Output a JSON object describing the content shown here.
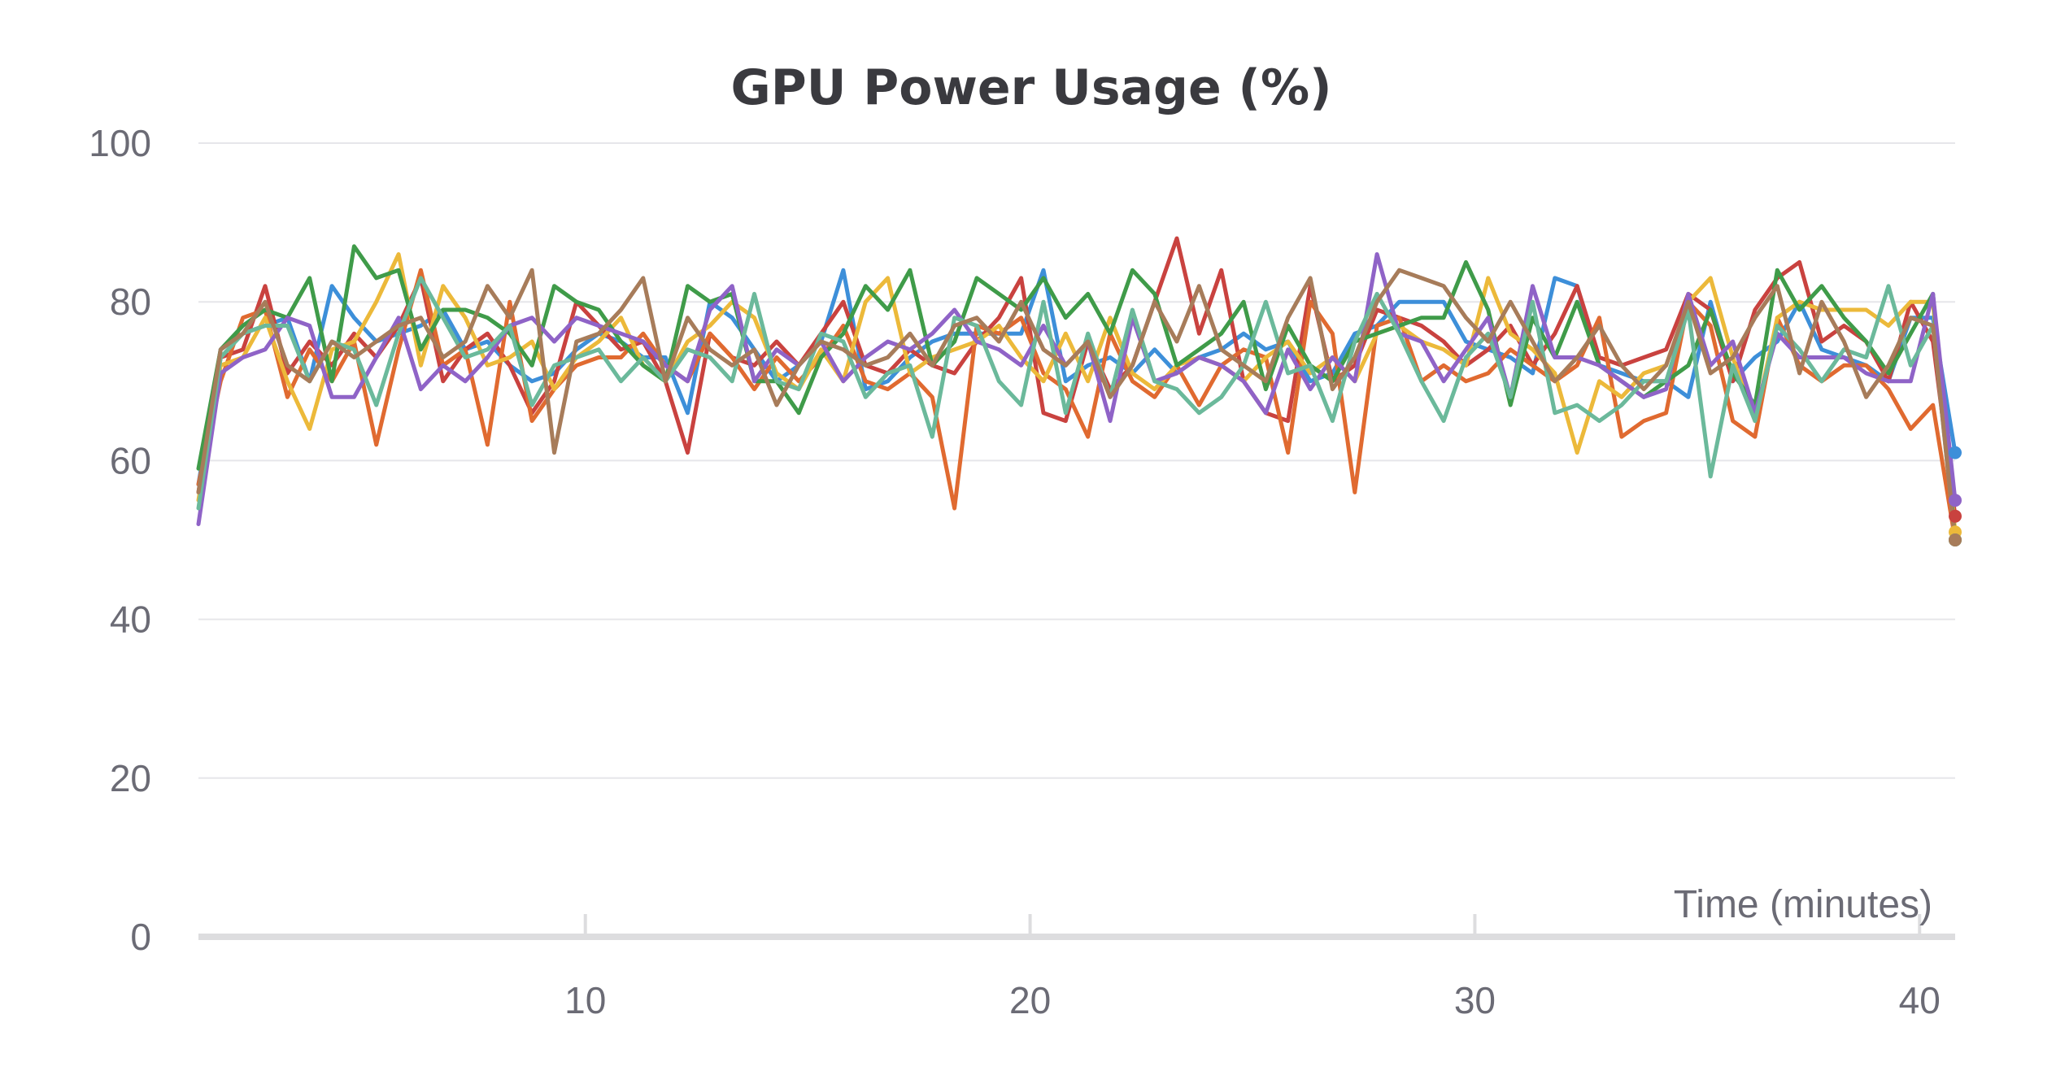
{
  "chart_data": {
    "type": "line",
    "title": "GPU Power Usage (%)",
    "xlabel": "Time (minutes)",
    "ylabel": "",
    "xlim": [
      1.3,
      40.8
    ],
    "ylim": [
      0,
      100
    ],
    "xticks": [
      10,
      20,
      30,
      40
    ],
    "yticks": [
      0,
      20,
      40,
      60,
      80,
      100
    ],
    "grid": true,
    "x": [
      1.3,
      1.8,
      2.3,
      2.8,
      3.3,
      3.8,
      4.3,
      4.8,
      5.3,
      5.8,
      6.3,
      6.8,
      7.3,
      7.8,
      8.3,
      8.8,
      9.3,
      9.8,
      10.3,
      10.8,
      11.3,
      11.8,
      12.3,
      12.8,
      13.3,
      13.8,
      14.3,
      14.8,
      15.3,
      15.8,
      16.3,
      16.8,
      17.3,
      17.8,
      18.3,
      18.8,
      19.3,
      19.8,
      20.3,
      20.8,
      21.3,
      21.8,
      22.3,
      22.8,
      23.3,
      23.8,
      24.3,
      24.8,
      25.3,
      25.8,
      26.3,
      26.8,
      27.3,
      27.8,
      28.3,
      28.8,
      29.3,
      29.8,
      30.3,
      30.8,
      31.3,
      31.8,
      32.3,
      32.8,
      33.3,
      33.8,
      34.3,
      34.8,
      35.3,
      35.8,
      36.3,
      36.8,
      37.3,
      37.8,
      38.3,
      38.8,
      39.3,
      39.8,
      40.3,
      40.8
    ],
    "series": [
      {
        "color": "#3d8fd9",
        "values": [
          57,
          74,
          76,
          77,
          78,
          70,
          82,
          78,
          75,
          76,
          77,
          79,
          74,
          75,
          72,
          70,
          71,
          74,
          76,
          75,
          73,
          73,
          66,
          80,
          78,
          74,
          70,
          72,
          75,
          84,
          69,
          70,
          73,
          75,
          76,
          76,
          76,
          76,
          84,
          70,
          72,
          73,
          71,
          74,
          71,
          73,
          74,
          76,
          74,
          75,
          70,
          71,
          76,
          77,
          80,
          80,
          80,
          75,
          74,
          73,
          71,
          83,
          82,
          72,
          71,
          70,
          70,
          68,
          80,
          70,
          73,
          75,
          80,
          74,
          73,
          72,
          70,
          78,
          78,
          61
        ]
      },
      {
        "color": "#c9423f",
        "values": [
          56,
          73,
          74,
          82,
          71,
          75,
          72,
          76,
          73,
          77,
          83,
          70,
          74,
          76,
          72,
          66,
          70,
          80,
          77,
          74,
          75,
          70,
          61,
          76,
          73,
          72,
          75,
          72,
          76,
          80,
          72,
          71,
          74,
          72,
          71,
          75,
          78,
          83,
          66,
          65,
          75,
          69,
          72,
          80,
          88,
          76,
          84,
          70,
          66,
          65,
          82,
          70,
          72,
          79,
          78,
          77,
          75,
          72,
          74,
          77,
          72,
          76,
          82,
          73,
          72,
          73,
          74,
          81,
          79,
          70,
          79,
          83,
          85,
          75,
          77,
          75,
          70,
          80,
          75,
          53
        ]
      },
      {
        "color": "#e06a30",
        "values": [
          57,
          70,
          78,
          79,
          68,
          74,
          70,
          75,
          62,
          74,
          84,
          72,
          74,
          62,
          80,
          65,
          69,
          72,
          73,
          73,
          76,
          72,
          70,
          76,
          73,
          69,
          73,
          70,
          73,
          77,
          70,
          69,
          71,
          68,
          54,
          77,
          76,
          78,
          71,
          69,
          63,
          76,
          70,
          68,
          72,
          67,
          72,
          74,
          73,
          61,
          80,
          76,
          56,
          77,
          78,
          70,
          72,
          70,
          71,
          74,
          72,
          70,
          72,
          78,
          63,
          65,
          66,
          80,
          77,
          65,
          63,
          78,
          72,
          70,
          72,
          72,
          69,
          64,
          67,
          50
        ]
      },
      {
        "color": "#ecb93a",
        "values": [
          55,
          72,
          73,
          78,
          70,
          64,
          74,
          75,
          80,
          86,
          72,
          82,
          78,
          72,
          73,
          75,
          69,
          73,
          75,
          78,
          72,
          70,
          75,
          77,
          80,
          78,
          71,
          69,
          74,
          70,
          80,
          83,
          71,
          73,
          74,
          75,
          77,
          73,
          70,
          76,
          70,
          78,
          71,
          69,
          72,
          73,
          72,
          70,
          73,
          75,
          71,
          73,
          70,
          76,
          77,
          75,
          74,
          72,
          83,
          76,
          74,
          71,
          61,
          70,
          68,
          71,
          72,
          80,
          83,
          73,
          65,
          78,
          80,
          79,
          79,
          79,
          77,
          80,
          80,
          51
        ]
      },
      {
        "color": "#3f9b49",
        "values": [
          59,
          74,
          77,
          79,
          78,
          83,
          70,
          87,
          83,
          84,
          74,
          79,
          79,
          78,
          76,
          72,
          82,
          80,
          79,
          75,
          72,
          70,
          82,
          80,
          81,
          70,
          70,
          66,
          73,
          76,
          82,
          79,
          84,
          72,
          75,
          83,
          81,
          79,
          83,
          78,
          81,
          76,
          84,
          81,
          72,
          74,
          76,
          80,
          69,
          77,
          72,
          70,
          75,
          76,
          77,
          78,
          78,
          85,
          79,
          67,
          78,
          73,
          80,
          72,
          70,
          68,
          70,
          72,
          79,
          71,
          67,
          84,
          79,
          82,
          78,
          75,
          71,
          76,
          81,
          50
        ]
      },
      {
        "color": "#8f63c7",
        "values": [
          52,
          71,
          73,
          74,
          78,
          77,
          68,
          68,
          73,
          78,
          69,
          72,
          70,
          73,
          77,
          78,
          75,
          78,
          77,
          76,
          75,
          72,
          70,
          79,
          82,
          70,
          74,
          72,
          75,
          70,
          73,
          75,
          74,
          76,
          79,
          75,
          74,
          72,
          77,
          72,
          75,
          65,
          78,
          70,
          71,
          73,
          72,
          70,
          66,
          74,
          69,
          73,
          70,
          86,
          76,
          75,
          70,
          74,
          78,
          68,
          82,
          73,
          73,
          72,
          70,
          68,
          69,
          81,
          72,
          75,
          66,
          76,
          73,
          73,
          73,
          71,
          70,
          70,
          81,
          55
        ]
      },
      {
        "color": "#6bb99b",
        "values": [
          54,
          73,
          76,
          77,
          77,
          70,
          75,
          74,
          67,
          76,
          83,
          78,
          73,
          74,
          77,
          67,
          72,
          73,
          74,
          70,
          73,
          70,
          74,
          73,
          70,
          81,
          70,
          69,
          76,
          75,
          68,
          71,
          72,
          63,
          78,
          77,
          70,
          67,
          80,
          66,
          76,
          68,
          79,
          70,
          69,
          66,
          68,
          72,
          80,
          71,
          72,
          65,
          75,
          81,
          76,
          70,
          65,
          73,
          76,
          68,
          80,
          66,
          67,
          65,
          67,
          70,
          70,
          79,
          58,
          72,
          65,
          77,
          74,
          70,
          74,
          73,
          82,
          72,
          77,
          50
        ]
      },
      {
        "color": "#a77c5a",
        "values": [
          56,
          74,
          76,
          80,
          72,
          70,
          75,
          73,
          75,
          77,
          78,
          73,
          75,
          82,
          78,
          84,
          61,
          75,
          76,
          79,
          83,
          70,
          78,
          74,
          72,
          74,
          67,
          72,
          75,
          74,
          72,
          73,
          76,
          72,
          77,
          78,
          75,
          80,
          74,
          72,
          75,
          68,
          72,
          80,
          75,
          82,
          74,
          72,
          70,
          78,
          83,
          69,
          73,
          80,
          84,
          83,
          82,
          78,
          75,
          80,
          75,
          70,
          73,
          77,
          72,
          69,
          72,
          80,
          71,
          73,
          78,
          82,
          71,
          80,
          75,
          68,
          72,
          78,
          77,
          50
        ]
      }
    ]
  }
}
